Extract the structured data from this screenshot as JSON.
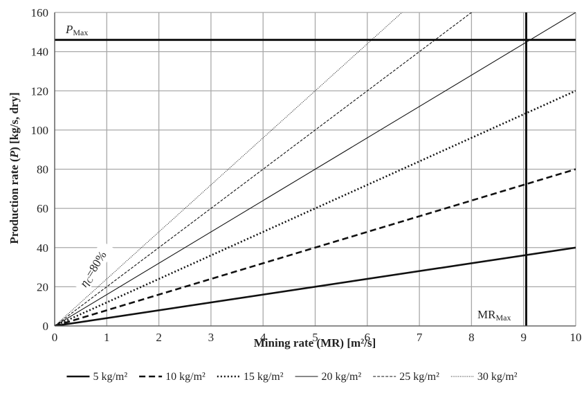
{
  "chart_data": {
    "type": "line",
    "xlabel": "Mining rate (MR) [m²/s]",
    "ylabel_parts": {
      "pre": "Production rate (",
      "var": "P",
      "post": ") [kg/s, dry]"
    },
    "xlim": [
      0,
      10
    ],
    "ylim": [
      0,
      160
    ],
    "x_ticks": [
      "0",
      "1",
      "2",
      "3",
      "4",
      "5",
      "6",
      "7",
      "8",
      "9",
      "10"
    ],
    "y_ticks": [
      "0",
      "20",
      "40",
      "60",
      "80",
      "100",
      "120",
      "140",
      "160"
    ],
    "grid": true,
    "legend_position": "bottom",
    "x": [
      0,
      10
    ],
    "series": [
      {
        "name": "5 kg/m²",
        "values": [
          0,
          40
        ],
        "style": "solid-thick"
      },
      {
        "name": "10 kg/m²",
        "values": [
          0,
          80
        ],
        "style": "dashed-thick"
      },
      {
        "name": "15 kg/m²",
        "values": [
          0,
          120
        ],
        "style": "dotted-thick"
      },
      {
        "name": "20 kg/m²",
        "values": [
          0,
          160
        ],
        "style": "solid-thin"
      },
      {
        "name": "25 kg/m²",
        "values": [
          0,
          200
        ],
        "style": "dashed-thin"
      },
      {
        "name": "30 kg/m²",
        "values": [
          0,
          240
        ],
        "style": "dotted-thin"
      }
    ],
    "reference_lines": {
      "p_max": {
        "value": 146,
        "label_main": "P",
        "label_sub": "Max"
      },
      "mr_max": {
        "value": 9.05,
        "label_main": "MR",
        "label_sub": "Max"
      }
    },
    "annotation": {
      "eta": "η",
      "sub": "C",
      "rest": "=80%"
    }
  }
}
